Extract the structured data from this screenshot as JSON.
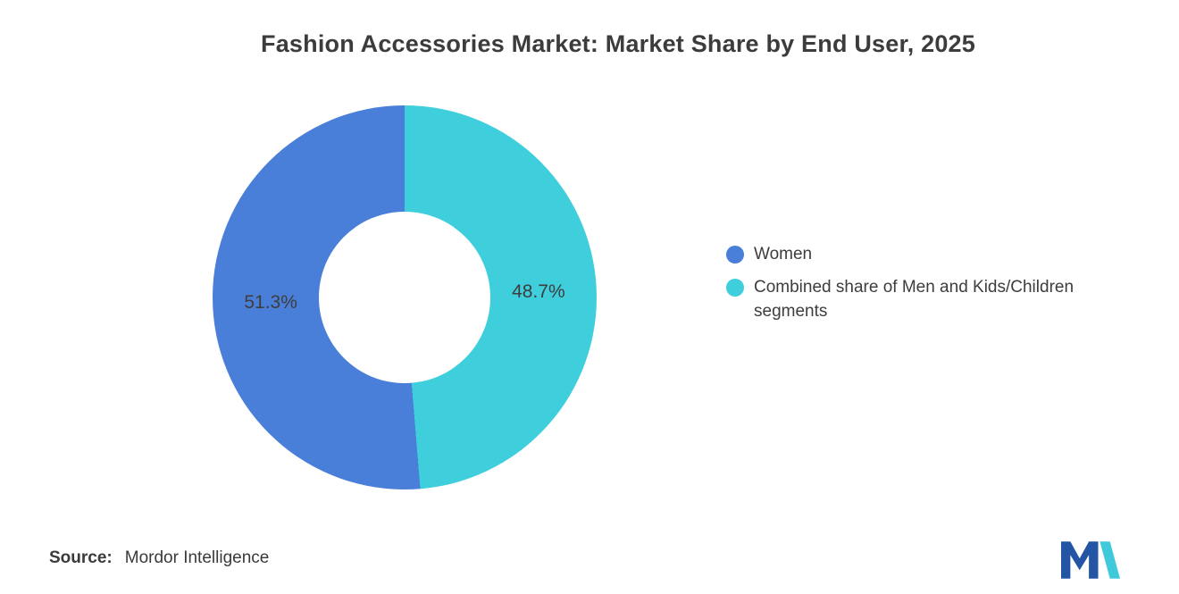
{
  "title": "Fashion Accessories Market: Market Share by End User, 2025",
  "chart_data": {
    "type": "pie",
    "donut": true,
    "title": "Fashion Accessories Market: Market Share by End User, 2025",
    "total": 100,
    "series": [
      {
        "name": "Women",
        "value": 51.3,
        "label": "51.3%",
        "color": "#4A7FD9"
      },
      {
        "name": "Combined share of Men and Kids/Children segments",
        "value": 48.7,
        "label": "48.7%",
        "color": "#3FCEDC"
      }
    ],
    "clockwise_order_from_top": [
      1,
      0
    ],
    "legend_position": "right"
  },
  "legend": {
    "items": [
      {
        "label": "Women",
        "color": "#4A7FD9"
      },
      {
        "label": "Combined share of Men and Kids/Children segments",
        "color": "#3FCEDC"
      }
    ]
  },
  "source": {
    "label": "Source:",
    "value": "Mordor Intelligence"
  },
  "logo": {
    "name": "mordor-intelligence-logo",
    "blue": "#2455A4",
    "teal": "#35C6D9"
  }
}
